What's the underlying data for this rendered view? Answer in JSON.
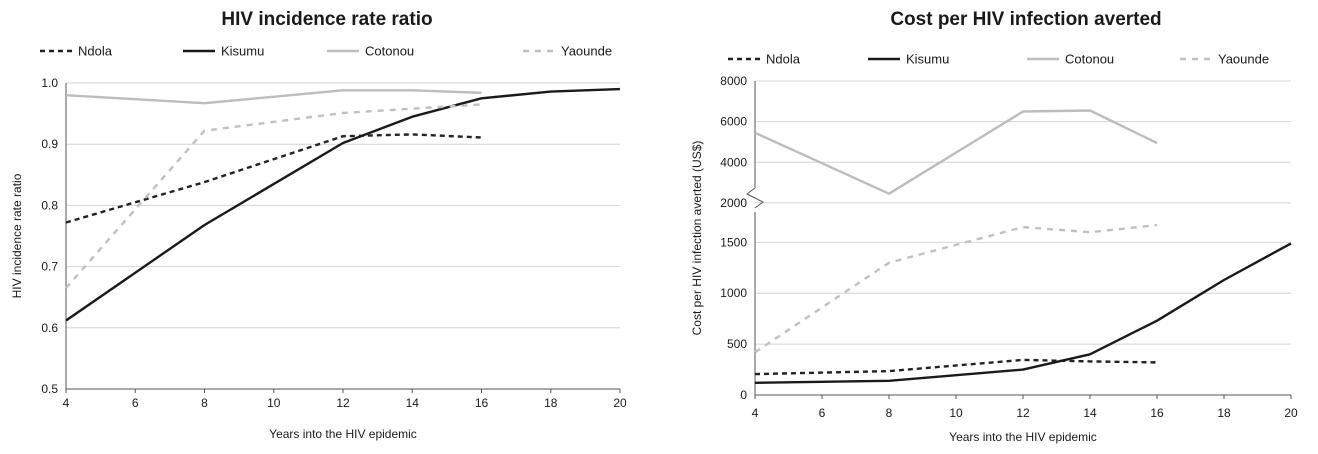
{
  "chart_data": [
    {
      "type": "line",
      "title": "HIV incidence rate ratio",
      "xlabel": "Years into the HIV epidemic",
      "ylabel": "HIV incidence rate ratio",
      "xlim": [
        4,
        20
      ],
      "ylim": [
        0.5,
        1.0
      ],
      "xticks": [
        "4",
        "6",
        "8",
        "10",
        "12",
        "14",
        "16",
        "18",
        "20"
      ],
      "yticks": [
        "0.5",
        "0.6",
        "0.7",
        "0.8",
        "0.9",
        "1.0"
      ],
      "grid": true,
      "legend_position": "top",
      "series": [
        {
          "name": "Ndola",
          "style": "dotted",
          "color": "#222222",
          "points": [
            [
              4,
              0.772
            ],
            [
              8,
              0.838
            ],
            [
              12,
              0.913
            ],
            [
              14,
              0.916
            ],
            [
              16,
              0.911
            ]
          ]
        },
        {
          "name": "Kisumu",
          "style": "solid",
          "color": "#1a1a1a",
          "points": [
            [
              4,
              0.612
            ],
            [
              8,
              0.768
            ],
            [
              12,
              0.902
            ],
            [
              14,
              0.945
            ],
            [
              16,
              0.975
            ],
            [
              18,
              0.986
            ],
            [
              20,
              0.99
            ]
          ]
        },
        {
          "name": "Cotonou",
          "style": "solid",
          "color": "#bdbdbd",
          "points": [
            [
              4,
              0.98
            ],
            [
              8,
              0.967
            ],
            [
              12,
              0.988
            ],
            [
              14,
              0.988
            ],
            [
              16,
              0.984
            ]
          ]
        },
        {
          "name": "Yaounde",
          "style": "dashed",
          "color": "#c0c0c0",
          "points": [
            [
              4,
              0.665
            ],
            [
              8,
              0.922
            ],
            [
              12,
              0.951
            ],
            [
              16,
              0.965
            ]
          ]
        }
      ]
    },
    {
      "type": "line",
      "title": "Cost per HIV infection averted",
      "xlabel": "Years into the HIV epidemic",
      "ylabel": "Cost per HIV infection averted (US$)",
      "xlim": [
        4,
        20
      ],
      "ylim": [
        0,
        8000
      ],
      "axis_break": true,
      "lower_ylim": [
        0,
        1700
      ],
      "upper_ylim": [
        1600,
        8000
      ],
      "xticks": [
        "4",
        "6",
        "8",
        "10",
        "12",
        "14",
        "16",
        "18",
        "20"
      ],
      "yticks_upper": [
        "2000",
        "4000",
        "6000",
        "8000"
      ],
      "yticks_lower": [
        "0",
        "500",
        "1000",
        "1500"
      ],
      "grid": true,
      "legend_position": "top",
      "series": [
        {
          "name": "Ndola",
          "style": "dotted",
          "color": "#222222",
          "points": [
            [
              4,
              205
            ],
            [
              8,
              235
            ],
            [
              12,
              345
            ],
            [
              14,
              330
            ],
            [
              16,
              320
            ]
          ]
        },
        {
          "name": "Kisumu",
          "style": "solid",
          "color": "#1a1a1a",
          "points": [
            [
              4,
              120
            ],
            [
              8,
              140
            ],
            [
              12,
              250
            ],
            [
              14,
              400
            ],
            [
              16,
              730
            ],
            [
              18,
              1130
            ],
            [
              20,
              1490
            ]
          ]
        },
        {
          "name": "Cotonou",
          "style": "solid",
          "color": "#bdbdbd",
          "points": [
            [
              4,
              5450
            ],
            [
              8,
              2450
            ],
            [
              12,
              6500
            ],
            [
              14,
              6550
            ],
            [
              16,
              4950
            ]
          ]
        },
        {
          "name": "Yaounde",
          "style": "dashed",
          "color": "#c0c0c0",
          "points": [
            [
              4,
              420
            ],
            [
              8,
              1300
            ],
            [
              12,
              1650
            ],
            [
              14,
              1600
            ],
            [
              16,
              1670
            ]
          ]
        }
      ]
    }
  ]
}
